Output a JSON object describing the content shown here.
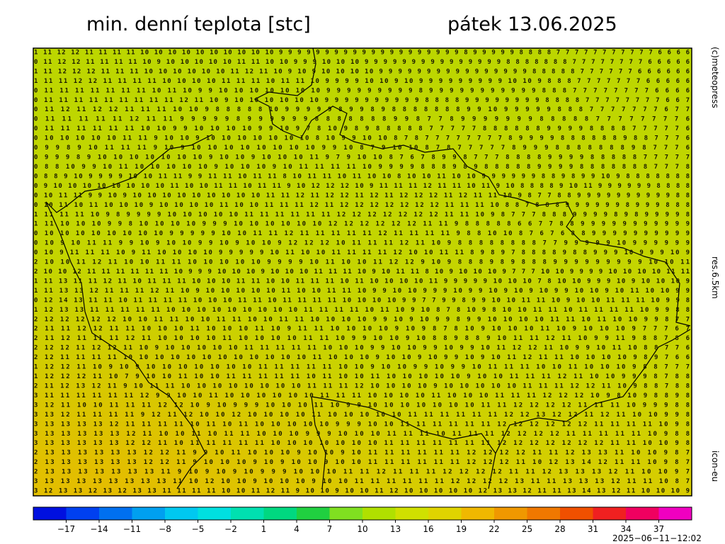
{
  "header": {
    "title": "min. denní teplota [stc]",
    "date": "pátek 13.06.2025"
  },
  "side": {
    "credit": "(c)meteopress",
    "resolution": "res.6.5km",
    "model": "icon-eu"
  },
  "timestamp": "2025−06−11−12:02",
  "map": {
    "rows": [
      "1 11 12 12 11 11 11 11 10 10 10 10 10 10 10 10 10 10 9 9 9 9 9 9 9 9 9 9 9 9 9 9 9 9 9 9 9 9 8 9 9 9 9 9 8 8 8 8 7 7 7 7 7 7 7 7 7 7 7 6 6 6 6",
      "0 11 12 12 11 11 11 11 10 9 10 10 10 10 10 11 11 10 10 9 9 9 10 10 10 9 9 9 9 9 9 9 9 9 9 9 9 9 9 9 8 8 8 8 8 8 8 7 7 7 7 7 7 7 7 6 6 6 6 6",
      "1 11 12 12 12 11 11 11 10 10 10 10 10 10 11 12 11 10 9 10 9 10 10 10 10 9 9 9 9 9 9 9 9 9 9 9 9 9 9 9 9 8 8 8 8 8 7 7 7 7 7 7 6 6 6 6 6 6",
      "1 11 11 12 12 11 11 11 11 10 10 10 10 11 11 11 10 11 11 10 9 9 9 9 10 10 9 10 9 9 9 9 9 9 9 9 9 10 10 9 8 8 8 7 7 7 7 7 7 7 6 6 6 6 6",
      "0 11 11 11 11 11 11 11 10 11 10 9 9 10 10 10 10 10 10 10 9 9 9 9 9 9 9 9 9 8 9 9 9 9 9 9 9 9 9 9 9 8 8 8 7 7 7 7 7 7 7 7 6 6 6 6",
      "0 11 11 11 11 11 11 11 11 11 12 11 10 9 10 10 10 10 10 10 9 9 9 9 9 9 9 9 9 9 8 8 8 8 9 9 9 9 9 9 9 9 8 8 8 8 7 7 7 7 7 7 7 7 6 6 7",
      "0 11 12 11 12 12 11 11 11 10 10 9 8 8 8 8 8 10 9 9 9 9 9 8 9 9 8 9 8 8 8 8 8 8 8 9 9 10 9 9 9 9 9 8 8 8 7 7 7 7 7 7 7 6 7 7",
      "0 11 11 11 11 11 12 11 11 9 9 9 9 9 8 9 9 9 9 9 9 8 8 8 8 8 8 8 9 9 8 7 7 8 9 9 9 9 9 9 9 8 8 8 8 8 7 7 7 7 7 7 7 7 6",
      "0 11 11 11 11 11 11 10 10 9 9 10 10 10 10 9 9 10 9 7 8 10 9 8 9 8 8 8 8 8 7 7 7 7 7 8 8 8 8 8 8 9 9 9 9 8 8 8 8 7 7 7 7 7 6",
      "0 10 10 10 10 10 11 11 9 10 10 9 10 10 10 10 10 10 10 8 10 9 9 10 10 8 7 8 7 7 7 7 7 7 7 7 8 9 9 9 9 8 8 8 8 8 8 9 8 8 7 7 7 6",
      "0 9 9 8 9 10 11 11 11 9 10 9 10 10 10 10 10 10 10 10 9 9 10 8 7 9 10 10 8 7 8 7 7 7 7 7 8 9 9 9 8 8 8 8 8 8 8 9 8 7 7 7 6",
      "0 9 9 9 8 9 10 10 10 10 10 10 10 9 10 10 9 10 10 10 11 9 7 9 10 10 8 7 6 7 8 9 9 8 7 7 7 8 8 8 8 9 9 9 9 8 8 8 8 8 7 7 7 7 7",
      "0 8 8 10 9 9 10 11 10 10 10 10 10 9 10 10 10 9 10 11 11 11 11 10 9 9 9 9 8 8 8 9 8 9 8 8 8 8 8 9 9 9 9 8 8 8 8 8 8 8 7 7 7 8",
      "0 8 8 9 10 9 9 9 9 10 10 11 11 9 9 11 11 10 11 11 8 10 11 11 10 11 10 10 8 10 10 11 10 10 9 9 9 9 9 9 8 8 9 8 9 9 10 9 8 8 8 8 8 8 8",
      "0 9 10 10 10 10 10 10 10 10 11 10 10 11 11 10 11 11 9 10 12 12 12 10 9 11 11 11 12 11 11 10 11 9 10 8 8 8 8 9 10 11 9 9 9 9 9 9 8 8 8 8",
      "0 10 11 11 9 9 10 9 10 10 10 10 10 10 10 10 10 11 11 12 11 12 12 11 12 11 12 12 12 11 12 11 11 10 9 8 7 7 8 8 9 9 9 9 9 9 9 9 9 9 8 8",
      "0 10 11 10 11 10 10 10 9 10 10 10 10 11 10 10 11 11 11 12 11 12 12 12 12 12 12 12 11 11 11 10 8 8 7 8 8 8 9 9 9 9 9 9 8 9 9 9 8 8 8",
      "1 11 11 11 10 9 8 9 9 9 9 10 10 10 10 10 11 11 11 11 11 11 12 12 12 12 12 12 12 11 11 10 9 8 7 7 7 8 8 8 9 9 9 9 8 9 8 9 9 9 9 8",
      "1 11 10 10 10 9 9 8 10 10 10 10 9 9 9 10 10 10 10 10 10 12 12 12 12 12 12 11 11 9 8 8 8 8 8 6 6 7 7 8 8 9 9 9 9 9 9 9 9 9 9 9",
      "0 10 10 10 10 10 10 10 10 9 9 9 9 9 10 10 11 11 12 11 11 11 11 11 12 11 11 11 11 9 8 8 10 10 8 7 6 7 6 8 8 9 9 9 9 9 9 9 9 9 9",
      "0 10 9 10 11 11 9 9 10 9 10 10 9 9 10 9 10 10 9 12 12 12 10 11 11 11 12 11 10 9 8 8 8 8 8 8 8 8 7 7 9 9 9 9 9 10 9 9 9 9 9 9",
      "0 10 9 11 11 11 10 9 11 10 10 10 10 9 9 9 9 9 10 11 10 10 11 11 11 11 12 10 10 11 11 8 9 8 9 7 8 8 8 8 9 8 8 9 9 9 10 9 9 9 10 9",
      "2 10 10 11 12 11 10 10 11 11 10 10 10 10 10 9 9 9 9 10 11 10 10 11 12 12 9 10 9 8 8 8 9 8 9 8 8 8 9 9 9 9 9 9 9 9 9 10 10 11",
      "2 10 10 12 11 11 11 11 11 11 10 9 9 9 10 10 10 9 10 10 10 11 11 11 10 9 10 11 11 8 10 9 10 10 10 9 7 7 7 10 10 9 9 9 9 10 10 10 10 11 11",
      "1 11 13 11 11 12 11 10 11 11 11 10 10 10 11 11 10 10 11 11 11 10 11 10 10 10 10 11 9 9 9 9 9 10 10 10 7 8 10 10 9 9 9 10 9 10 10 10 9",
      "1 11 13 13 12 11 11 11 12 11 10 9 10 10 10 10 10 11 10 10 11 11 10 9 9 10 10 9 9 9 10 9 9 10 9 10 9 10 9 9 10 10 9 10 11 10 10 9 9",
      "0 12 14 13 11 11 10 11 11 11 11 10 10 10 11 11 10 11 11 11 11 10 10 10 10 9 9 7 7 9 9 8 9 9 10 10 11 11 10 9 10 10 11 11 11 10 9 9 8",
      "1 12 13 13 11 11 11 11 11 10 10 10 10 10 10 10 10 10 11 11 11 11 10 11 10 9 10 8 7 8 10 9 8 10 10 11 11 10 11 11 11 11 10 9 9 8 8",
      "2 12 12 12 12 12 10 10 11 11 10 10 11 11 10 10 11 11 10 10 10 10 9 9 10 9 10 9 9 8 9 9 10 10 10 10 11 11 10 11 10 10 9 9 8 7 7",
      "2 11 11 12 12 11 11 10 10 10 11 10 10 10 11 10 9 11 11 10 10 10 10 9 10 9 8 7 8 10 9 10 10 10 11 10 9 10 10 10 9 7 7 7 6 7",
      "2 11 12 11 11 11 12 11 10 10 10 10 11 10 10 10 10 11 11 10 9 9 10 10 9 10 8 8 9 8 8 9 10 11 11 12 11 10 9 9 11 9 8 8 7 8 6",
      "2 12 12 11 12 12 11 10 9 10 10 10 10 10 11 11 11 11 11 10 10 10 9 9 10 10 9 9 10 9 9 10 11 12 12 11 10 9 9 10 11 10 8 8 7 7 6",
      "2 12 11 11 11 11 10 10 10 10 10 10 10 10 10 10 10 10 11 10 10 10 9 10 10 9 10 9 9 10 9 10 11 12 11 11 10 10 10 10 9 8 9 7 6 6",
      "1 12 12 11 10 9 10 9 10 10 10 10 10 10 10 11 11 11 11 11 10 10 9 10 10 9 9 10 9 9 10 11 11 11 10 10 11 10 10 10 9 8 8 7 7 7",
      "1 12 12 12 11 10 7 9 10 10 11 10 10 11 11 11 11 11 10 11 10 10 11 10 10 10 10 10 9 10 10 11 11 11 12 11 10 10 9 9 9 8 7 8 8",
      "2 11 12 13 12 11 9 10 11 11 10 10 10 10 10 10 10 10 11 11 11 12 10 10 10 10 9 10 10 10 10 10 11 11 11 12 12 11 10 9 8 8 7 8 8",
      "3 11 11 11 11 11 11 12 9 9 10 10 11 10 10 10 10 10 10 11 11 11 10 10 10 10 11 10 10 10 11 11 11 12 12 12 10 9 8 10 9 8 8 9 8",
      "3 12 11 10 10 11 11 11 12 12 10 9 10 9 9 9 10 10 10 11 10 9 9 10 10 10 10 10 10 10 11 11 12 12 12 12 11 11 11 10 9 9 9 8 8",
      "3 13 12 11 11 11 11 9 12 11 12 10 10 12 10 10 10 10 11 10 10 10 10 10 11 11 11 11 11 11 12 12 13 12 12 11 12 11 10 10 9 9 8",
      "3 13 13 13 13 12 11 11 11 11 10 11 10 11 10 10 10 10 10 9 9 9 10 10 11 11 11 11 11 11 12 12 12 12 12 12 11 11 11 11 10 9 8",
      "3 13 13 13 13 13 12 11 10 10 11 10 11 11 10 10 10 9 9 9 10 10 10 11 11 11 10 11 11 11 12 12 12 12 11 11 11 11 11 10 9 8 8",
      "3 13 13 13 13 13 12 12 11 10 11 11 11 11 11 10 10 10 10 10 10 10 11 11 11 11 11 11 11 12 12 12 12 12 12 12 11 11 10 10 9 8",
      "2 13 13 13 13 13 13 12 12 11 9 9 10 11 10 10 10 9 10 10 9 10 11 11 11 11 11 11 12 12 12 12 11 11 12 13 13 11 10 10 9 8 7",
      "2 13 13 13 13 13 13 12 12 11 9 10 10 10 9 10 9 10 10 9 10 10 11 11 11 11 11 11 12 12 12 11 10 12 13 14 12 11 11 10 9 8 7",
      "2 13 13 13 13 13 13 13 11 9 10 9 10 9 10 9 9 9 10 10 10 11 11 12 11 11 11 12 12 12 12 11 11 12 13 13 13 12 11 10 10 9 7",
      "3 13 13 13 13 13 13 13 13 11 10 12 10 10 9 10 10 10 9 10 10 11 11 11 11 11 11 12 12 12 12 13 11 11 13 13 13 12 11 11 10 8 7",
      "3 12 13 13 12 13 12 13 13 11 11 11 11 10 10 11 12 11 9 10 10 9 10 10 11 12 10 10 10 10 10 12 13 13 12 11 11 13 14 13 12 11 10 10 10 9"
    ]
  },
  "colorbar": {
    "range": [
      -20,
      40
    ],
    "colors": [
      "#0010e0",
      "#0040f0",
      "#0070f0",
      "#00a0f0",
      "#00c8f0",
      "#00e0e0",
      "#00e0b0",
      "#00d880",
      "#20d040",
      "#80e020",
      "#b0e000",
      "#d0e000",
      "#e0d400",
      "#f0b800",
      "#f09800",
      "#f07800",
      "#f05000",
      "#f02020",
      "#f00060",
      "#f000c0"
    ],
    "ticks": [
      {
        "value": -17,
        "label": "−17"
      },
      {
        "value": -14,
        "label": "−14"
      },
      {
        "value": -11,
        "label": "−11"
      },
      {
        "value": -8,
        "label": "−8"
      },
      {
        "value": -5,
        "label": "−5"
      },
      {
        "value": -2,
        "label": "−2"
      },
      1,
      4,
      7,
      10,
      13,
      16,
      19,
      22,
      25,
      28,
      31,
      34,
      37
    ]
  }
}
